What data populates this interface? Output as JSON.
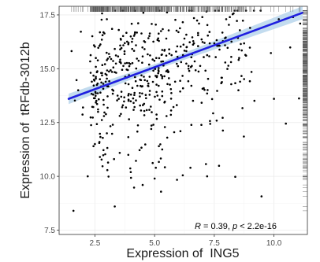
{
  "chart_data": {
    "type": "scatter",
    "title": "",
    "xlabel": "Expression of  ING5",
    "ylabel": "Expression of  tRFdb-3012b",
    "xlim": [
      1.0,
      11.4
    ],
    "ylim": [
      7.3,
      17.9
    ],
    "x_ticks": [
      2.5,
      5.0,
      7.5,
      10.0
    ],
    "x_tick_labels": [
      "2.5",
      "5.0",
      "7.5",
      "10.0"
    ],
    "y_ticks": [
      7.5,
      10.0,
      12.5,
      15.0,
      17.5
    ],
    "y_tick_labels": [
      "7.5",
      "10.0",
      "12.5",
      "15.0",
      "17.5"
    ],
    "grid": true,
    "rug": "top and right margins",
    "annotation": {
      "r_symbol": "R",
      "r_text": " = 0.39, ",
      "p_symbol": "p",
      "p_text": " < 2.2e-16"
    },
    "regression": {
      "x": [
        1.4,
        11.2
      ],
      "y": [
        13.6,
        17.6
      ],
      "band_halfwidth": 0.3
    },
    "point_count": 520,
    "series": [
      {
        "points": [
          [
            1.6,
            8.4
          ],
          [
            1.8,
            14.0
          ],
          [
            2.0,
            13.2
          ],
          [
            2.2,
            10.0
          ],
          [
            2.5,
            11.5
          ],
          [
            3.0,
            17.3
          ],
          [
            3.5,
            16.8
          ],
          [
            3.0,
            12.0
          ],
          [
            4.0,
            10.2
          ],
          [
            4.5,
            9.6
          ],
          [
            5.0,
            9.9
          ],
          [
            6.0,
            16.7
          ],
          [
            7.0,
            17.4
          ],
          [
            8.0,
            17.3
          ],
          [
            9.0,
            16.9
          ],
          [
            10.0,
            13.6
          ],
          [
            10.2,
            17.3
          ],
          [
            10.8,
            17.4
          ],
          [
            11.1,
            17.1
          ],
          [
            4.8,
            15.0
          ],
          [
            6.5,
            10.4
          ],
          [
            7.2,
            10.0
          ],
          [
            3.9,
            11.0
          ],
          [
            5.5,
            12.8
          ],
          [
            2.8,
            14.8
          ]
        ]
      }
    ],
    "colors": {
      "points": "#000000",
      "line": "#1f1fe0",
      "band": "#b9d6ec",
      "grid": "#ebebeb",
      "panel_border": "#333333",
      "rug": "#555555"
    }
  }
}
